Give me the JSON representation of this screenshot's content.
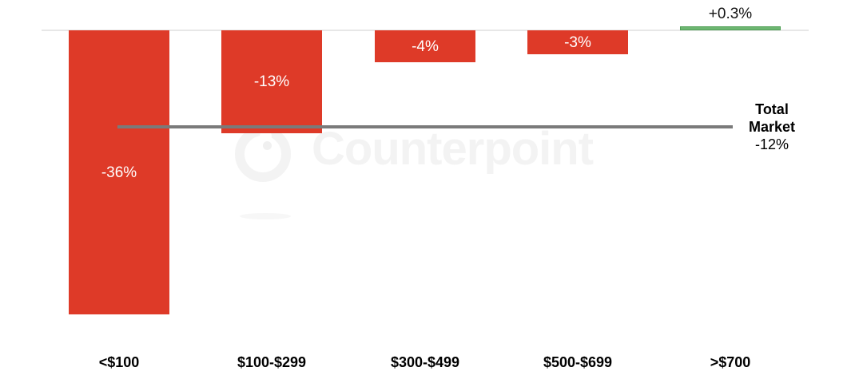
{
  "chart_data": {
    "type": "bar",
    "title": "",
    "xlabel": "",
    "ylabel": "",
    "categories": [
      "<$100",
      "$100-$299",
      "$300-$499",
      "$500-$699",
      ">$700"
    ],
    "points": [
      {
        "category": "<$100",
        "value": -36,
        "display": "-36%"
      },
      {
        "category": "$100-$299",
        "value": -13,
        "display": "-13%"
      },
      {
        "category": "$300-$499",
        "value": -4,
        "display": "-4%"
      },
      {
        "category": "$500-$699",
        "value": -3,
        "display": "-3%"
      },
      {
        "category": ">$700",
        "value": 0.3,
        "display": "+0.3%"
      }
    ],
    "total_market": {
      "label": "Total Market",
      "value": -12,
      "display": "-12%"
    },
    "layout": {
      "value_axis_hidden": true,
      "bars_hang_from_zero_line": true,
      "grid": false,
      "legend": false
    },
    "colors": {
      "negative_bar": "#de3a28",
      "positive_bar": "#6db671",
      "positive_bar_border": "#4f9f55",
      "total_line": "#7a7a7a",
      "axis_line": "#e7e7e7",
      "bar_label": "#ffffff",
      "text": "#000000",
      "watermark": "#f3f3f3"
    }
  },
  "watermark": {
    "text": "Counterpoint"
  }
}
